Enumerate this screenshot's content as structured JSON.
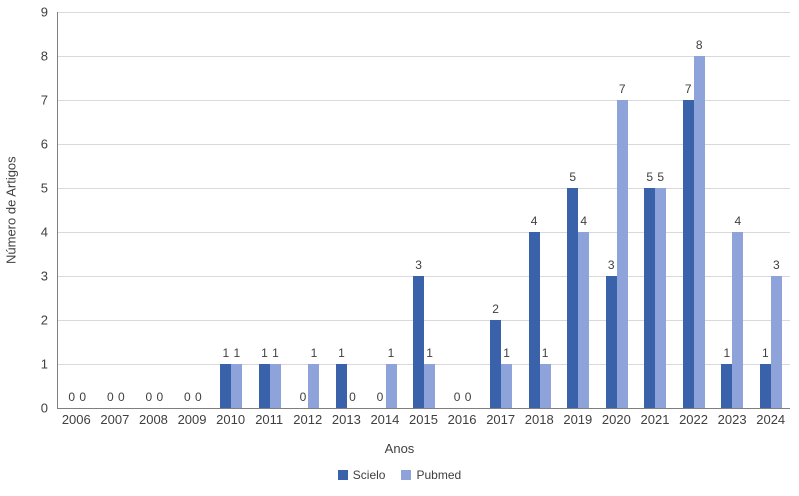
{
  "chart_data": {
    "type": "bar",
    "title": "",
    "xlabel": "Anos",
    "ylabel": "Número de Artigos",
    "categories": [
      "2006",
      "2007",
      "2008",
      "2009",
      "2010",
      "2011",
      "2012",
      "2013",
      "2014",
      "2015",
      "2016",
      "2017",
      "2018",
      "2019",
      "2020",
      "2021",
      "2022",
      "2023",
      "2024"
    ],
    "series": [
      {
        "name": "Scielo",
        "color": "#3A62AB",
        "values": [
          0,
          0,
          0,
          0,
          1,
          1,
          0,
          1,
          0,
          3,
          0,
          2,
          4,
          5,
          3,
          5,
          7,
          1,
          1
        ]
      },
      {
        "name": "Pubmed",
        "color": "#8FA3DB",
        "values": [
          0,
          0,
          0,
          0,
          1,
          1,
          1,
          0,
          1,
          1,
          0,
          1,
          1,
          4,
          7,
          5,
          8,
          4,
          3
        ]
      }
    ],
    "ylim": [
      0,
      9
    ],
    "ytick_step": 1,
    "grid": true,
    "data_labels": true,
    "legend_position": "bottom"
  },
  "colors": {
    "gridline": "#D9D9D9",
    "axis_line": "#7F7F7F",
    "text": "#3F3F3F"
  }
}
